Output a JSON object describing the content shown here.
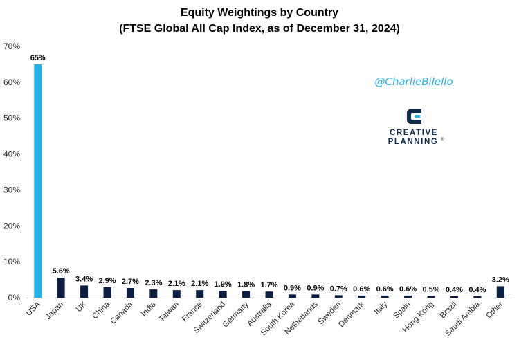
{
  "chart_data": {
    "type": "bar",
    "title": "Equity Weightings by Country",
    "subtitle": "(FTSE Global All Cap Index, as of December 31, 2024)",
    "xlabel": "",
    "ylabel": "",
    "ylim": [
      0,
      70
    ],
    "yticks": [
      0,
      10,
      20,
      30,
      40,
      50,
      60,
      70
    ],
    "ytick_labels": [
      "0%",
      "10%",
      "20%",
      "30%",
      "40%",
      "50%",
      "60%",
      "70%"
    ],
    "grid": false,
    "categories": [
      "USA",
      "Japan",
      "UK",
      "China",
      "Canada",
      "India",
      "Taiwan",
      "France",
      "Switzerland",
      "Germany",
      "Australia",
      "South Korea",
      "Netherlands",
      "Sweden",
      "Denmark",
      "Italy",
      "Spain",
      "Hong Kong",
      "Brazil",
      "Saudi Arabia",
      "Other"
    ],
    "values": [
      65,
      5.6,
      3.4,
      2.9,
      2.7,
      2.3,
      2.1,
      2.1,
      1.9,
      1.8,
      1.7,
      0.9,
      0.9,
      0.7,
      0.6,
      0.6,
      0.6,
      0.5,
      0.4,
      0.4,
      3.2
    ],
    "data_labels": [
      "65%",
      "5.6%",
      "3.4%",
      "2.9%",
      "2.7%",
      "2.3%",
      "2.1%",
      "2.1%",
      "1.9%",
      "1.8%",
      "1.7%",
      "0.9%",
      "0.9%",
      "0.7%",
      "0.6%",
      "0.6%",
      "0.6%",
      "0.5%",
      "0.4%",
      "0.4%",
      "3.2%"
    ],
    "colors": {
      "highlight": "#1fb5ec",
      "default": "#0b1f45"
    },
    "highlight_category": "USA"
  },
  "watermark": {
    "handle": "@CharlieBilello",
    "brand_line1": "CREATIVE",
    "brand_line2": "PLANNING",
    "trademark": "®",
    "logo_icon": "creative-planning-logo-icon"
  }
}
